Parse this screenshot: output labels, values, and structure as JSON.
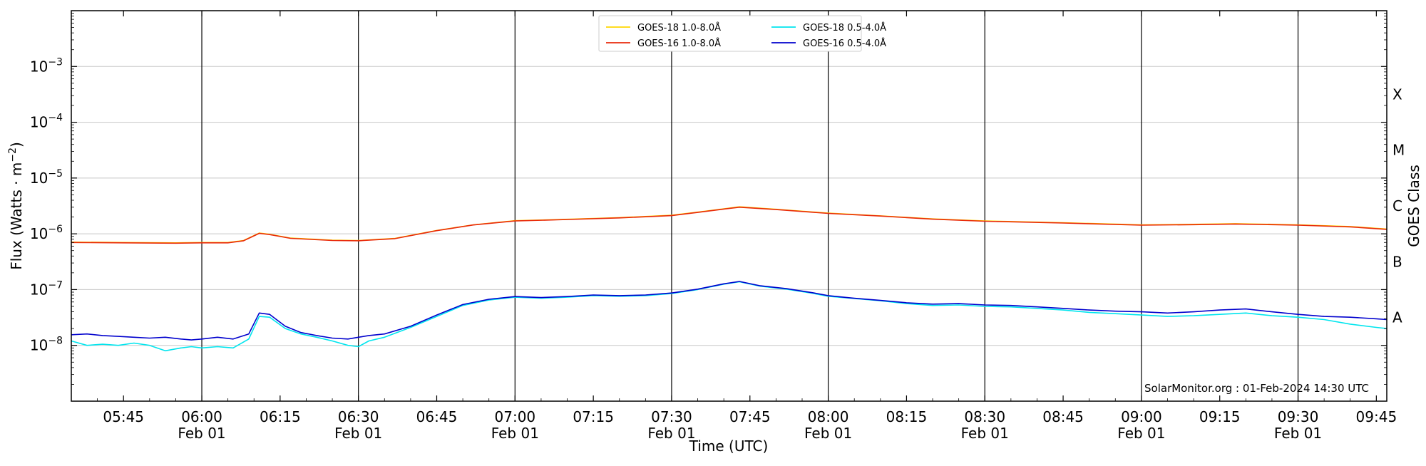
{
  "chart_data": {
    "type": "line",
    "title": "",
    "xlabel": "Time (UTC)",
    "ylabel": "Flux (Watts · m^-2)",
    "ylabel_parts": {
      "base": "Flux (Watts · m",
      "sup": "−2",
      "tail": ")"
    },
    "y2label": "GOES Class",
    "y_scale": "log",
    "ylim": [
      1e-09,
      0.01
    ],
    "xlim": [
      "05:35",
      "09:47"
    ],
    "grid": "horizontal at each decade",
    "vertical_lines_at": [
      "06:00",
      "06:30",
      "07:00",
      "07:30",
      "08:00",
      "08:30",
      "09:00",
      "09:30"
    ],
    "x_ticks": [
      {
        "label": "05:45",
        "x": "05:45",
        "date": ""
      },
      {
        "label": "06:00",
        "x": "06:00",
        "date": "Feb 01"
      },
      {
        "label": "06:15",
        "x": "06:15",
        "date": ""
      },
      {
        "label": "06:30",
        "x": "06:30",
        "date": "Feb 01"
      },
      {
        "label": "06:45",
        "x": "06:45",
        "date": ""
      },
      {
        "label": "07:00",
        "x": "07:00",
        "date": "Feb 01"
      },
      {
        "label": "07:15",
        "x": "07:15",
        "date": ""
      },
      {
        "label": "07:30",
        "x": "07:30",
        "date": "Feb 01"
      },
      {
        "label": "07:45",
        "x": "07:45",
        "date": ""
      },
      {
        "label": "08:00",
        "x": "08:00",
        "date": "Feb 01"
      },
      {
        "label": "08:15",
        "x": "08:15",
        "date": ""
      },
      {
        "label": "08:30",
        "x": "08:30",
        "date": "Feb 01"
      },
      {
        "label": "08:45",
        "x": "08:45",
        "date": ""
      },
      {
        "label": "09:00",
        "x": "09:00",
        "date": "Feb 01"
      },
      {
        "label": "09:15",
        "x": "09:15",
        "date": ""
      },
      {
        "label": "09:30",
        "x": "09:30",
        "date": "Feb 01"
      },
      {
        "label": "09:45",
        "x": "09:45",
        "date": ""
      }
    ],
    "y_ticks": [
      {
        "value": 1e-08,
        "base": "10",
        "exp": "−8"
      },
      {
        "value": 1e-07,
        "base": "10",
        "exp": "−7"
      },
      {
        "value": 1e-06,
        "base": "10",
        "exp": "−6"
      },
      {
        "value": 1e-05,
        "base": "10",
        "exp": "−5"
      },
      {
        "value": 0.0001,
        "base": "10",
        "exp": "−4"
      },
      {
        "value": 0.001,
        "base": "10",
        "exp": "−3"
      }
    ],
    "class_labels": [
      {
        "label": "A",
        "value": 3.16e-08
      },
      {
        "label": "B",
        "value": 3.16e-07
      },
      {
        "label": "C",
        "value": 3.16e-06
      },
      {
        "label": "M",
        "value": 3.16e-05
      },
      {
        "label": "X",
        "value": 0.000316
      }
    ],
    "legend_position": "top-center",
    "legend_columns": 2,
    "annotation": "SolarMonitor.org : 01-Feb-2024 14:30 UTC",
    "series": [
      {
        "name": "GOES-18 1.0-8.0Å",
        "color": "#ffd700",
        "x": [
          "05:35",
          "05:45",
          "05:55",
          "06:00",
          "06:05",
          "06:08",
          "06:11",
          "06:13",
          "06:17",
          "06:25",
          "06:30",
          "06:37",
          "06:45",
          "06:52",
          "07:00",
          "07:08",
          "07:20",
          "07:30",
          "07:35",
          "07:40",
          "07:43",
          "07:50",
          "08:00",
          "08:10",
          "08:20",
          "08:30",
          "08:45",
          "09:00",
          "09:10",
          "09:18",
          "09:30",
          "09:40",
          "09:47"
        ],
        "y": [
          7.1e-07,
          7e-07,
          6.9e-07,
          7e-07,
          7e-07,
          7.6e-07,
          1.03e-06,
          9.8e-07,
          8.4e-07,
          7.7e-07,
          7.6e-07,
          8.3e-07,
          1.15e-06,
          1.45e-06,
          1.72e-06,
          1.8e-06,
          1.95e-06,
          2.15e-06,
          2.45e-06,
          2.8e-06,
          3.05e-06,
          2.75e-06,
          2.35e-06,
          2.1e-06,
          1.85e-06,
          1.7e-06,
          1.58e-06,
          1.45e-06,
          1.48e-06,
          1.52e-06,
          1.45e-06,
          1.35e-06,
          1.22e-06
        ]
      },
      {
        "name": "GOES-16 1.0-8.0Å",
        "color": "#e8290b",
        "x": [
          "05:35",
          "05:45",
          "05:55",
          "06:00",
          "06:05",
          "06:08",
          "06:11",
          "06:13",
          "06:17",
          "06:25",
          "06:30",
          "06:37",
          "06:45",
          "06:52",
          "07:00",
          "07:08",
          "07:20",
          "07:30",
          "07:35",
          "07:40",
          "07:43",
          "07:50",
          "08:00",
          "08:10",
          "08:20",
          "08:30",
          "08:45",
          "09:00",
          "09:10",
          "09:18",
          "09:30",
          "09:40",
          "09:47"
        ],
        "y": [
          7e-07,
          6.9e-07,
          6.8e-07,
          6.9e-07,
          6.9e-07,
          7.5e-07,
          1.02e-06,
          9.7e-07,
          8.3e-07,
          7.6e-07,
          7.5e-07,
          8.2e-07,
          1.14e-06,
          1.44e-06,
          1.7e-06,
          1.78e-06,
          1.93e-06,
          2.12e-06,
          2.42e-06,
          2.78e-06,
          3e-06,
          2.72e-06,
          2.32e-06,
          2.08e-06,
          1.83e-06,
          1.68e-06,
          1.56e-06,
          1.43e-06,
          1.46e-06,
          1.5e-06,
          1.43e-06,
          1.33e-06,
          1.2e-06
        ]
      },
      {
        "name": "GOES-18 0.5-4.0Å",
        "color": "#00e5ee",
        "x": [
          "05:35",
          "05:38",
          "05:41",
          "05:44",
          "05:47",
          "05:50",
          "05:53",
          "05:56",
          "05:58",
          "06:00",
          "06:03",
          "06:06",
          "06:09",
          "06:11",
          "06:13",
          "06:16",
          "06:19",
          "06:22",
          "06:25",
          "06:28",
          "06:30",
          "06:32",
          "06:35",
          "06:40",
          "06:45",
          "06:50",
          "06:55",
          "07:00",
          "07:05",
          "07:10",
          "07:15",
          "07:20",
          "07:25",
          "07:30",
          "07:35",
          "07:40",
          "07:43",
          "07:47",
          "07:52",
          "07:57",
          "08:00",
          "08:05",
          "08:10",
          "08:15",
          "08:20",
          "08:25",
          "08:30",
          "08:35",
          "08:40",
          "08:45",
          "08:50",
          "08:55",
          "09:00",
          "09:05",
          "09:10",
          "09:15",
          "09:20",
          "09:25",
          "09:30",
          "09:35",
          "09:40",
          "09:45",
          "09:47"
        ],
        "y": [
          1.2e-08,
          1e-08,
          1.05e-08,
          1e-08,
          1.1e-08,
          1e-08,
          8e-09,
          9e-09,
          9.5e-09,
          9e-09,
          9.5e-09,
          9e-09,
          1.3e-08,
          3.3e-08,
          3.2e-08,
          2e-08,
          1.6e-08,
          1.4e-08,
          1.2e-08,
          1e-08,
          9.5e-09,
          1.2e-08,
          1.4e-08,
          2.1e-08,
          3.3e-08,
          5.2e-08,
          6.5e-08,
          7.3e-08,
          7e-08,
          7.3e-08,
          7.8e-08,
          7.6e-08,
          7.8e-08,
          8.5e-08,
          1e-07,
          1.25e-07,
          1.38e-07,
          1.15e-07,
          1.02e-07,
          8.6e-08,
          7.6e-08,
          6.9e-08,
          6.3e-08,
          5.6e-08,
          5.2e-08,
          5.3e-08,
          5e-08,
          4.9e-08,
          4.6e-08,
          4.3e-08,
          3.9e-08,
          3.7e-08,
          3.5e-08,
          3.3e-08,
          3.4e-08,
          3.6e-08,
          3.8e-08,
          3.4e-08,
          3.2e-08,
          2.9e-08,
          2.4e-08,
          2.1e-08,
          2e-08
        ]
      },
      {
        "name": "GOES-16 0.5-4.0Å",
        "color": "#0000cd",
        "x": [
          "05:35",
          "05:38",
          "05:41",
          "05:44",
          "05:47",
          "05:50",
          "05:53",
          "05:56",
          "05:58",
          "06:00",
          "06:03",
          "06:06",
          "06:09",
          "06:11",
          "06:13",
          "06:16",
          "06:19",
          "06:22",
          "06:25",
          "06:28",
          "06:30",
          "06:32",
          "06:35",
          "06:40",
          "06:45",
          "06:50",
          "06:55",
          "07:00",
          "07:05",
          "07:10",
          "07:15",
          "07:20",
          "07:25",
          "07:30",
          "07:35",
          "07:40",
          "07:43",
          "07:47",
          "07:52",
          "07:57",
          "08:00",
          "08:05",
          "08:10",
          "08:15",
          "08:20",
          "08:25",
          "08:30",
          "08:35",
          "08:40",
          "08:45",
          "08:50",
          "08:55",
          "09:00",
          "09:05",
          "09:10",
          "09:15",
          "09:20",
          "09:25",
          "09:30",
          "09:35",
          "09:40",
          "09:45",
          "09:47"
        ],
        "y": [
          1.55e-08,
          1.6e-08,
          1.5e-08,
          1.45e-08,
          1.4e-08,
          1.35e-08,
          1.4e-08,
          1.3e-08,
          1.25e-08,
          1.3e-08,
          1.4e-08,
          1.3e-08,
          1.6e-08,
          3.8e-08,
          3.6e-08,
          2.2e-08,
          1.7e-08,
          1.5e-08,
          1.35e-08,
          1.3e-08,
          1.4e-08,
          1.5e-08,
          1.6e-08,
          2.2e-08,
          3.5e-08,
          5.4e-08,
          6.7e-08,
          7.5e-08,
          7.2e-08,
          7.5e-08,
          8e-08,
          7.8e-08,
          8e-08,
          8.7e-08,
          1.02e-07,
          1.27e-07,
          1.4e-07,
          1.17e-07,
          1.04e-07,
          8.8e-08,
          7.8e-08,
          7e-08,
          6.4e-08,
          5.8e-08,
          5.5e-08,
          5.6e-08,
          5.3e-08,
          5.2e-08,
          4.9e-08,
          4.6e-08,
          4.3e-08,
          4.1e-08,
          4e-08,
          3.8e-08,
          4e-08,
          4.3e-08,
          4.5e-08,
          4e-08,
          3.6e-08,
          3.3e-08,
          3.2e-08,
          3e-08,
          2.9e-08
        ]
      }
    ]
  }
}
